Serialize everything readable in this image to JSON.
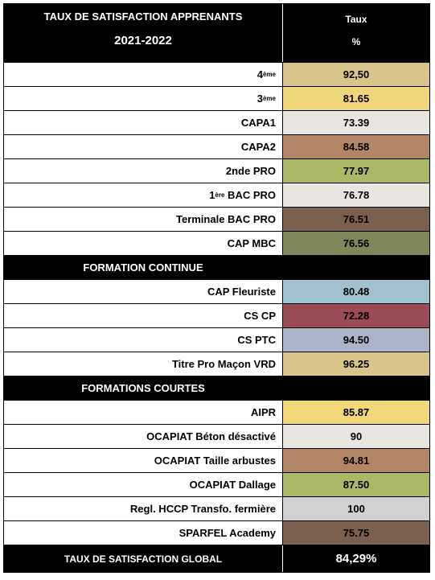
{
  "header": {
    "title": "TAUX DE SATISFACTION APPRENANTS",
    "year": "2021-2022",
    "col_label": "Taux",
    "col_unit": "%"
  },
  "rows": [
    {
      "label": "4",
      "sup": "ème",
      "value": "92,50",
      "color": "#d9c48b"
    },
    {
      "label": "3",
      "sup": "ème",
      "value": "81.65",
      "color": "#f0d67b"
    },
    {
      "label": "CAPA1",
      "value": "73.39",
      "color": "#e9e5e0"
    },
    {
      "label": "CAPA2",
      "value": "84.58",
      "color": "#b28664"
    },
    {
      "label": "2nde PRO",
      "value": "77.97",
      "color": "#abb865"
    },
    {
      "label": "1",
      "sup": "ère",
      "rest": " BAC PRO",
      "value": "76.78",
      "color": "#e9e5e0"
    },
    {
      "label": "Terminale BAC PRO",
      "value": "76.51",
      "color": "#7b604f"
    },
    {
      "label": "CAP MBC",
      "value": "76.56",
      "color": "#7e885a"
    },
    {
      "section": "FORMATION CONTINUE"
    },
    {
      "label": "CAP Fleuriste",
      "value": "80.48",
      "color": "#a0c1cd"
    },
    {
      "label": "CS CP",
      "value": "72.28",
      "color": "#9c4c56"
    },
    {
      "label": "CS PTC",
      "value": "94.50",
      "color": "#abb4c9"
    },
    {
      "label": "Titre Pro Maçon VRD",
      "value": "96.25",
      "color": "#d9c48b"
    },
    {
      "section": "FORMATIONS COURTES"
    },
    {
      "label": "AIPR",
      "value": "85.87",
      "color": "#f1d87b"
    },
    {
      "label": "OCAPIAT Béton désactivé",
      "value": "90",
      "color": "#e9e5e0"
    },
    {
      "label": "OCAPIAT Taille arbustes",
      "value": "94.81",
      "color": "#b28664"
    },
    {
      "label": "OCAPIAT Dallage",
      "value": "87.50",
      "color": "#abb865"
    },
    {
      "label": "Regl. HCCP Transfo. fermière",
      "value": "100",
      "color": "#d1d1d1"
    },
    {
      "label": "SPARFEL Academy",
      "value": "75.75",
      "color": "#7b604f"
    }
  ],
  "footer": {
    "label": "TAUX DE SATISFACTION GLOBAL",
    "value": "84,29%"
  }
}
